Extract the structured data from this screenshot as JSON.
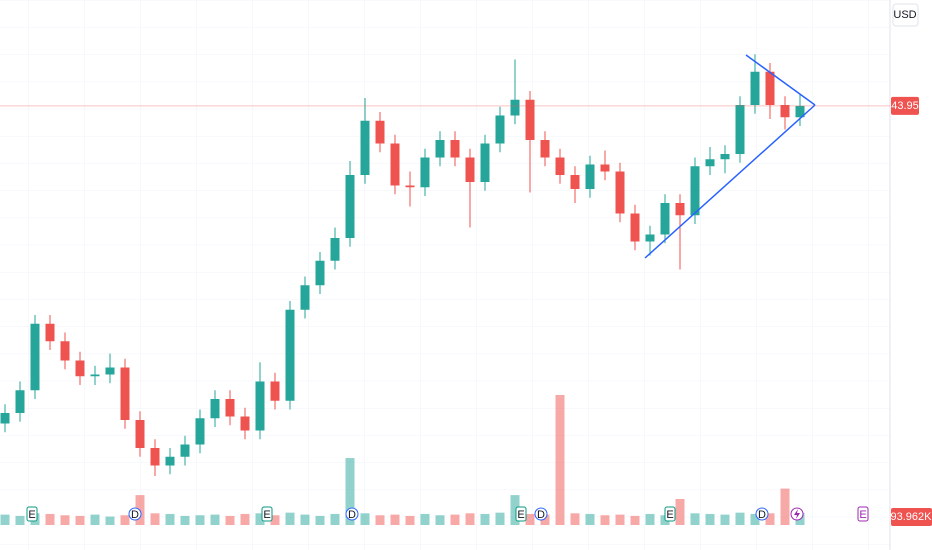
{
  "chart_data": {
    "type": "candlestick",
    "currency": "USD",
    "ylim": [
      22,
      50
    ],
    "open": [
      25.8,
      26.4,
      27.7,
      31.5,
      30.5,
      29.4,
      28.5,
      28.6,
      29.0,
      26.0,
      24.4,
      23.4,
      23.9,
      24.6,
      26.1,
      27.2,
      26.2,
      25.4,
      28.2,
      27.1,
      32.3,
      33.7,
      35.1,
      36.4,
      40.0,
      43.1,
      41.8,
      39.4,
      39.3,
      41.0,
      42.0,
      41.0,
      39.6,
      41.8,
      43.4,
      44.3,
      42.0,
      41.0,
      40.0,
      39.2,
      40.6,
      40.2,
      37.8,
      36.2,
      36.6,
      38.4,
      37.7,
      40.5,
      40.9,
      41.2,
      44.0,
      45.9,
      44.0,
      43.3
    ],
    "high": [
      26.9,
      28.2,
      32.0,
      32.0,
      31.0,
      29.9,
      29.1,
      29.8,
      29.5,
      26.5,
      24.9,
      24.4,
      25.1,
      26.6,
      27.7,
      27.7,
      26.7,
      29.3,
      28.7,
      32.8,
      34.2,
      35.6,
      37.0,
      40.8,
      44.4,
      43.6,
      42.3,
      40.2,
      41.5,
      42.5,
      42.5,
      41.5,
      42.3,
      43.9,
      46.6,
      44.8,
      42.5,
      41.5,
      40.5,
      41.1,
      41.4,
      40.7,
      38.3,
      37.1,
      38.9,
      38.9,
      41.0,
      41.6,
      41.7,
      44.5,
      46.9,
      46.4,
      44.5,
      44.6
    ],
    "low": [
      25.3,
      25.9,
      27.2,
      30.0,
      28.9,
      28.0,
      28.0,
      28.1,
      25.5,
      23.9,
      22.8,
      22.9,
      23.4,
      24.1,
      25.6,
      25.7,
      24.9,
      24.9,
      26.6,
      26.6,
      31.8,
      33.2,
      34.6,
      35.9,
      39.5,
      41.3,
      38.9,
      38.2,
      38.8,
      40.5,
      40.5,
      37.0,
      39.1,
      41.3,
      42.9,
      39.0,
      40.5,
      39.5,
      38.4,
      38.7,
      39.7,
      37.3,
      35.7,
      35.4,
      36.1,
      34.6,
      37.2,
      40.0,
      40.1,
      40.7,
      43.5,
      43.2,
      42.6,
      42.8
    ],
    "close": [
      26.4,
      27.7,
      31.5,
      30.5,
      29.4,
      28.5,
      28.6,
      29.0,
      26.0,
      24.4,
      23.4,
      23.9,
      24.6,
      26.1,
      27.2,
      26.2,
      25.4,
      28.2,
      27.1,
      32.3,
      33.7,
      35.1,
      36.4,
      40.0,
      43.1,
      41.8,
      39.4,
      39.3,
      41.0,
      42.0,
      41.0,
      39.6,
      41.8,
      43.4,
      44.3,
      42.0,
      41.0,
      40.0,
      39.2,
      40.6,
      40.2,
      37.8,
      36.2,
      36.6,
      38.4,
      37.7,
      40.5,
      40.9,
      41.2,
      44.0,
      45.9,
      44.0,
      43.3,
      43.95
    ],
    "volume": [
      80,
      70,
      90,
      85,
      75,
      70,
      80,
      65,
      75,
      230,
      90,
      85,
      70,
      75,
      80,
      70,
      85,
      90,
      75,
      95,
      80,
      70,
      85,
      515,
      90,
      75,
      80,
      70,
      85,
      75,
      80,
      90,
      85,
      95,
      230,
      85,
      80,
      1000,
      90,
      85,
      75,
      80,
      70,
      85,
      75,
      200,
      90,
      85,
      80,
      95,
      85,
      90,
      280,
      93.962
    ],
    "volume_ylim": [
      0,
      1000
    ],
    "volume_label": "93.962K",
    "last_price": 43.95,
    "up_color": "#26a69a",
    "down_color": "#ef5350",
    "events": [
      "E",
      "D",
      "E",
      "D",
      "E",
      "D",
      "E",
      "D",
      "E"
    ]
  }
}
